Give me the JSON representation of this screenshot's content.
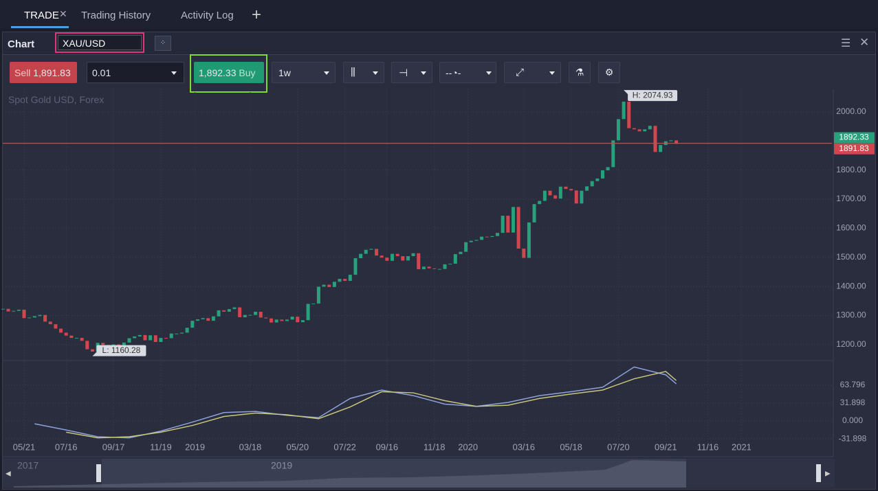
{
  "tabs": [
    "TRADE",
    "Trading History",
    "Activity Log"
  ],
  "panel": {
    "title": "Chart",
    "symbol": "XAU/USD"
  },
  "toolbar": {
    "sell_label": "Sell",
    "sell_price": "1,891.83",
    "quantity": "0.01",
    "buy_price": "1,892.33",
    "buy_label": "Buy",
    "interval": "1w"
  },
  "chart_data": {
    "type": "candlestick",
    "subtitle": "Spot Gold USD, Forex",
    "close": [
      1323,
      1314,
      1316,
      1320,
      1291,
      1293,
      1298,
      1302,
      1279,
      1270,
      1255,
      1241,
      1231,
      1223,
      1223,
      1213,
      1184,
      1176,
      1206,
      1199,
      1194,
      1201,
      1196,
      1207,
      1222,
      1228,
      1233,
      1215,
      1232,
      1209,
      1223,
      1222,
      1238,
      1238,
      1241,
      1258,
      1282,
      1287,
      1291,
      1282,
      1297,
      1318,
      1313,
      1322,
      1328,
      1294,
      1302,
      1302,
      1313,
      1293,
      1290,
      1276,
      1286,
      1281,
      1286,
      1296,
      1277,
      1284,
      1340,
      1341,
      1399,
      1406,
      1398,
      1416,
      1426,
      1419,
      1440,
      1497,
      1512,
      1526,
      1529,
      1506,
      1499,
      1488,
      1512,
      1504,
      1489,
      1504,
      1514,
      1459,
      1468,
      1462,
      1460,
      1460,
      1476,
      1478,
      1511,
      1519,
      1552,
      1557,
      1560,
      1571,
      1570,
      1573,
      1584,
      1643,
      1585,
      1673,
      1530,
      1498,
      1620,
      1683,
      1694,
      1729,
      1713,
      1702,
      1743,
      1735,
      1730,
      1685,
      1729,
      1744,
      1762,
      1771,
      1799,
      1810,
      1902,
      1975,
      2035,
      1944,
      1940,
      1933,
      1940,
      1952,
      1862,
      1886,
      1899,
      1902,
      1890
    ],
    "up_color": "#26a17b",
    "down_color": "#d2464f",
    "xlim": [
      -0.6,
      157
    ],
    "ylim": [
      1150,
      2080
    ],
    "yticks": [
      {
        "value": 1200,
        "label": "1200.00"
      },
      {
        "value": 1300,
        "label": "1300.00"
      },
      {
        "value": 1400,
        "label": "1400.00"
      },
      {
        "value": 1500,
        "label": "1500.00"
      },
      {
        "value": 1600,
        "label": "1600.00"
      },
      {
        "value": 1700,
        "label": "1700.00"
      },
      {
        "value": 1800,
        "label": "1800.00"
      },
      {
        "value": 2000,
        "label": "2000.00"
      }
    ],
    "xticks": [
      {
        "value": 4,
        "label": "05/21"
      },
      {
        "value": 12,
        "label": "07/16"
      },
      {
        "value": 21,
        "label": "09/17"
      },
      {
        "value": 30,
        "label": "11/19"
      },
      {
        "value": 36.5,
        "label": "2019"
      },
      {
        "value": 47,
        "label": "03/18"
      },
      {
        "value": 56,
        "label": "05/20"
      },
      {
        "value": 65,
        "label": "07/22"
      },
      {
        "value": 73,
        "label": "09/16"
      },
      {
        "value": 82,
        "label": "11/18"
      },
      {
        "value": 88.4,
        "label": "2020"
      },
      {
        "value": 99,
        "label": "03/16"
      },
      {
        "value": 108,
        "label": "05/18"
      },
      {
        "value": 117,
        "label": "07/20"
      },
      {
        "value": 126,
        "label": "09/21"
      },
      {
        "value": 134,
        "label": "11/16"
      },
      {
        "value": 140.4,
        "label": "2021"
      }
    ],
    "grid": true,
    "high": {
      "x": 118,
      "value": 2074.93,
      "label": "H: 2074.93"
    },
    "low": {
      "x": 17,
      "value": 1160.28,
      "label": "L: 1160.28"
    },
    "ask": 1892.33,
    "bid": 1891.83,
    "macd": {
      "ylim": [
        -61,
        105
      ],
      "yticks": [
        {
          "value": -31.898,
          "label": "-31.898"
        },
        {
          "value": 0,
          "label": "0.000"
        },
        31.898,
        63.796
      ],
      "x": [
        6,
        12,
        18,
        24,
        30,
        36,
        42,
        48,
        54,
        60,
        66,
        72,
        78,
        84,
        90,
        96,
        102,
        108,
        114,
        120,
        126,
        128
      ],
      "series": [
        {
          "color": "#8ea3dc",
          "values": [
            -5,
            -16,
            -28,
            -30,
            -18,
            -2,
            15,
            17,
            10,
            6,
            40,
            55,
            45,
            30,
            26,
            33,
            45,
            52,
            60,
            96,
            82,
            66
          ]
        },
        {
          "color": "#c9c77c",
          "values": [
            null,
            -20,
            -30,
            -28,
            -20,
            -8,
            8,
            14,
            11,
            4,
            25,
            52,
            50,
            36,
            26,
            28,
            40,
            48,
            55,
            75,
            88,
            72
          ]
        }
      ]
    }
  },
  "navigator": {
    "labels": [
      "2017",
      "2019"
    ]
  }
}
